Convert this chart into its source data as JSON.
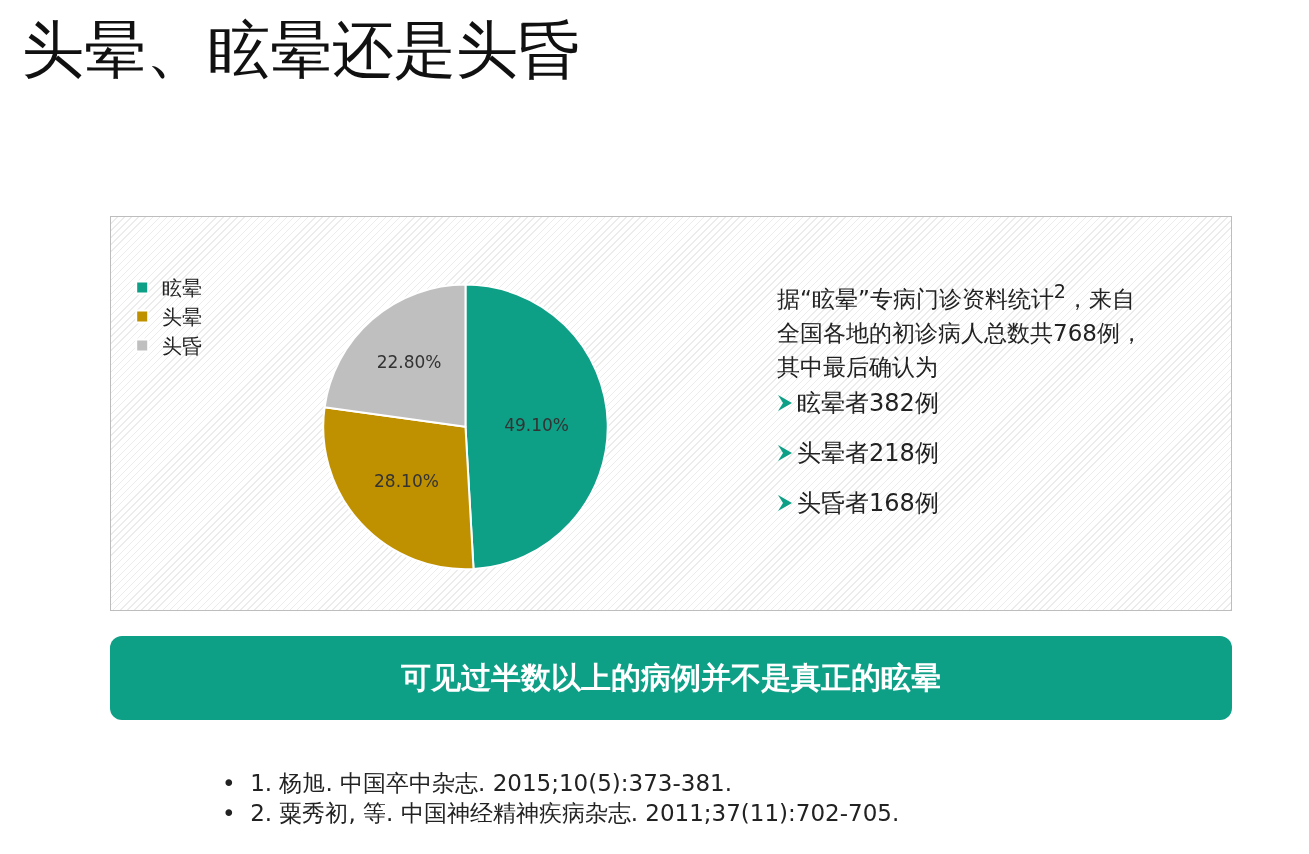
{
  "chart_data": {
    "type": "pie",
    "title": "头晕、眩晕还是头昏",
    "categories": [
      "眩晕",
      "头晕",
      "头昏"
    ],
    "values": [
      49.1,
      28.1,
      22.8
    ],
    "value_labels": [
      "49.10%",
      "28.10%",
      "22.80%"
    ],
    "colors": [
      "#0e9f87",
      "#bf9000",
      "#bfbfbf"
    ],
    "legend": "top left",
    "annotations": [
      "据“眩晕”专病门诊资料统计$^{2}$，来自全国各地的初诊病人总数共768例，其中最后确认为",
      "眩晕者382例",
      "头晕者218例",
      "头昏者168例",
      "可见过半数以上的病例并不是真正的眩晕",
      "•  1. 杨旭. 中国卒中杂志. 2015;10(5):373-381.",
      "•  2. 粟秀初, 等. 中国神经精神疾病杂志. 2011;37(11):702-705."
    ]
  }
}
